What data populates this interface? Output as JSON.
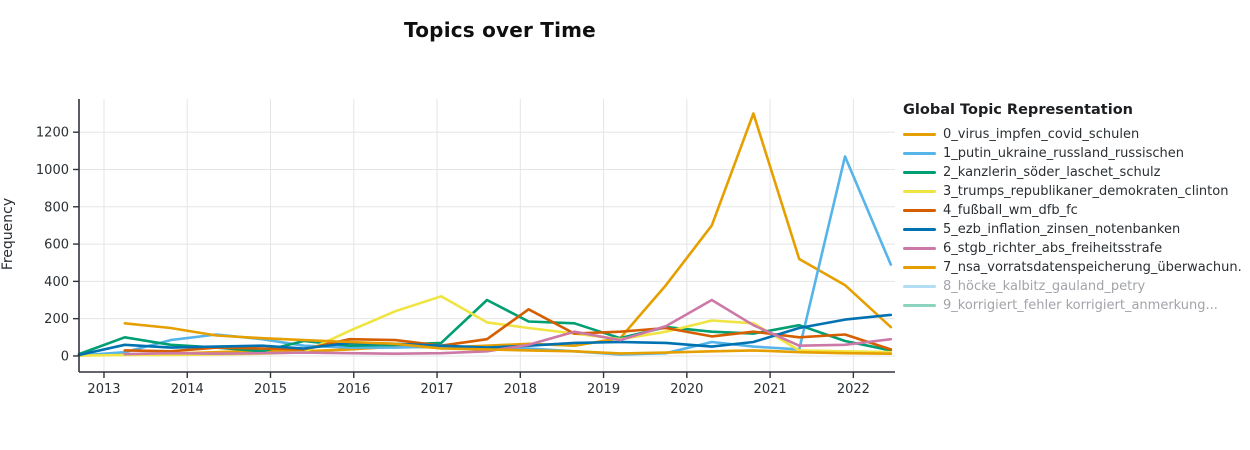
{
  "title": "Topics over Time",
  "y_axis_title": "Frequency",
  "legend": {
    "title": "Global Topic Representation",
    "items": [
      {
        "label": "0_virus_impfen_covid_schulen",
        "color": "#E69F00",
        "hidden": false
      },
      {
        "label": "1_putin_ukraine_russland_russischen",
        "color": "#56B4E9",
        "hidden": false
      },
      {
        "label": "2_kanzlerin_söder_laschet_schulz",
        "color": "#009E73",
        "hidden": false
      },
      {
        "label": "3_trumps_republikaner_demokraten_clinton",
        "color": "#F0E442",
        "hidden": false
      },
      {
        "label": "4_fußball_wm_dfb_fc",
        "color": "#D55E00",
        "hidden": false
      },
      {
        "label": "5_ezb_inflation_zinsen_notenbanken",
        "color": "#0072B2",
        "hidden": false
      },
      {
        "label": "6_stgb_richter_abs_freiheitsstrafe",
        "color": "#CC79A7",
        "hidden": false
      },
      {
        "label": "7_nsa_vorratsdatenspeicherung_überwachun.",
        "color": "#E69F00",
        "hidden": false
      },
      {
        "label": "8_höcke_kalbitz_gauland_petry",
        "color": "#56B4E9",
        "hidden": true
      },
      {
        "label": "9_korrigiert_fehler korrigiert_anmerkung...",
        "color": "#009E73",
        "hidden": true
      }
    ]
  },
  "chart_data": {
    "type": "line",
    "title": "Topics over Time",
    "xlabel": "",
    "ylabel": "Frequency",
    "x_ticks": [
      2013,
      2014,
      2015,
      2016,
      2017,
      2018,
      2019,
      2020,
      2021,
      2022
    ],
    "y_ticks": [
      0,
      200,
      400,
      600,
      800,
      1000,
      1200
    ],
    "x_range": [
      2012.7,
      2022.5
    ],
    "y_range": [
      -86,
      1378
    ],
    "grid": true,
    "legend_position": "right",
    "x": [
      2012.7,
      2013.25,
      2013.8,
      2014.35,
      2014.9,
      2015.4,
      2015.95,
      2016.5,
      2017.05,
      2017.6,
      2018.1,
      2018.65,
      2019.2,
      2019.75,
      2020.3,
      2020.8,
      2021.35,
      2021.9,
      2022.45
    ],
    "series": [
      {
        "name": "0_virus_impfen_covid_schulen",
        "color": "#E69F00",
        "values": [
          3,
          8,
          12,
          20,
          28,
          25,
          35,
          50,
          45,
          55,
          65,
          55,
          95,
          380,
          700,
          1300,
          520,
          380,
          155
        ]
      },
      {
        "name": "1_putin_ukraine_russland_russischen",
        "color": "#56B4E9",
        "values": [
          2,
          20,
          85,
          115,
          90,
          55,
          45,
          45,
          50,
          45,
          40,
          25,
          8,
          15,
          75,
          50,
          35,
          1070,
          490
        ]
      },
      {
        "name": "2_kanzlerin_söder_laschet_schulz",
        "color": "#009E73",
        "values": [
          10,
          100,
          60,
          45,
          25,
          80,
          55,
          60,
          70,
          300,
          185,
          175,
          95,
          155,
          130,
          120,
          165,
          80,
          30
        ]
      },
      {
        "name": "3_trumps_republikaner_demokraten_clinton",
        "color": "#F0E442",
        "values": [
          2,
          5,
          5,
          8,
          12,
          20,
          135,
          240,
          320,
          180,
          150,
          120,
          90,
          130,
          190,
          175,
          30,
          25,
          20
        ]
      },
      {
        "name": "4_fußball_wm_dfb_fc",
        "color": "#D55E00",
        "values": [
          null,
          30,
          25,
          45,
          40,
          35,
          90,
          85,
          55,
          90,
          250,
          120,
          130,
          150,
          105,
          130,
          100,
          115,
          35
        ]
      },
      {
        "name": "5_ezb_inflation_zinsen_notenbanken",
        "color": "#0072B2",
        "values": [
          5,
          60,
          45,
          50,
          55,
          40,
          70,
          65,
          55,
          45,
          55,
          70,
          75,
          70,
          50,
          75,
          150,
          195,
          220
        ]
      },
      {
        "name": "6_stgb_richter_abs_freiheitsstrafe",
        "color": "#CC79A7",
        "values": [
          null,
          10,
          15,
          12,
          15,
          18,
          15,
          12,
          15,
          25,
          60,
          130,
          85,
          160,
          300,
          165,
          55,
          60,
          90
        ]
      },
      {
        "name": "7_nsa_vorratsdatenspeicherung_überwachun.",
        "color": "#E69F00",
        "values": [
          null,
          175,
          150,
          110,
          95,
          85,
          75,
          65,
          40,
          35,
          30,
          25,
          14,
          18,
          25,
          30,
          20,
          15,
          12
        ]
      }
    ],
    "hidden_series": [
      "8_höcke_kalbitz_gauland_petry",
      "9_korrigiert_fehler korrigiert_anmerkung..."
    ]
  }
}
